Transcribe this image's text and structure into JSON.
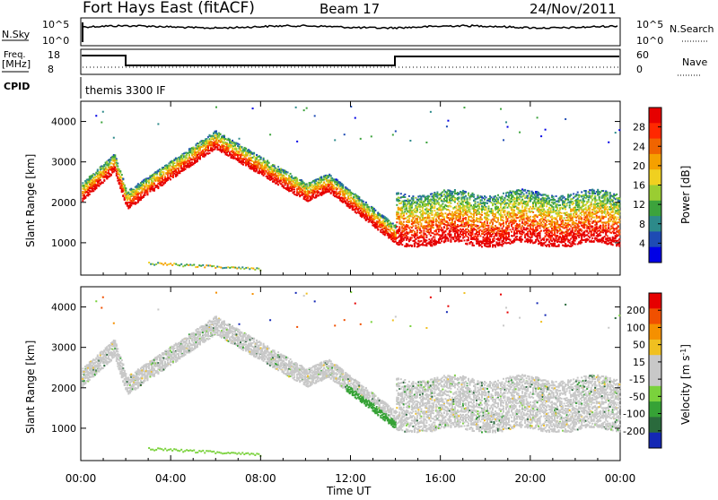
{
  "header": {
    "station": "Fort Hays East (fitACF)",
    "beam": "Beam 17",
    "date": "24/Nov/2011"
  },
  "top_panels": {
    "nsky_label": "N.Sky",
    "nsky_ticks": [
      "10^5",
      "10^0"
    ],
    "nsearch_label": "N.Search",
    "nsearch_ticks": [
      "10^5",
      "10^0"
    ],
    "freq_label_1": "Freq.",
    "freq_label_2": "[MHz]",
    "freq_ticks": [
      "18",
      "8"
    ],
    "nave_label": "Nave",
    "nave_ticks": [
      "60",
      "0"
    ],
    "cpid_label": "CPID",
    "cpid_text": "themis 3300 IF"
  },
  "chart_data": [
    {
      "type": "heatmap",
      "name": "power",
      "ylabel": "Slant Range [km]",
      "yticks": [
        "4000",
        "3000",
        "2000",
        "1000"
      ],
      "ylim": [
        200,
        4500
      ],
      "xlim": [
        0,
        24
      ],
      "colorbar_label": "Power [dB]",
      "colorbar_ticks": [
        "28",
        "24",
        "20",
        "16",
        "12",
        "8",
        "4"
      ],
      "colors": [
        "#0000e6",
        "#1e4bb4",
        "#2d8a8a",
        "#3ca33c",
        "#9acd32",
        "#f0d020",
        "#f5a000",
        "#f06400",
        "#ff2800",
        "#e60000"
      ]
    },
    {
      "type": "heatmap",
      "name": "velocity",
      "ylabel": "Slant Range [km]",
      "yticks": [
        "4000",
        "3000",
        "2000",
        "1000"
      ],
      "ylim": [
        200,
        4500
      ],
      "xlim": [
        0,
        24
      ],
      "colorbar_label": "Velocity [m s",
      "colorbar_label_sup": "-1",
      "colorbar_label_end": "]",
      "colorbar_ticks": [
        "200",
        "100",
        "50",
        "15",
        "-15",
        "-50",
        "-100",
        "-200"
      ],
      "colors": [
        "#1428b4",
        "#2a6a3c",
        "#36a236",
        "#7ad23c",
        "#c8c8c8",
        "#c8c8c8",
        "#f0c020",
        "#f59000",
        "#f05000",
        "#e60000"
      ]
    }
  ],
  "xaxis": {
    "ticks": [
      "00:00",
      "04:00",
      "08:00",
      "12:00",
      "16:00",
      "20:00",
      "00:00"
    ],
    "label": "Time UT"
  }
}
